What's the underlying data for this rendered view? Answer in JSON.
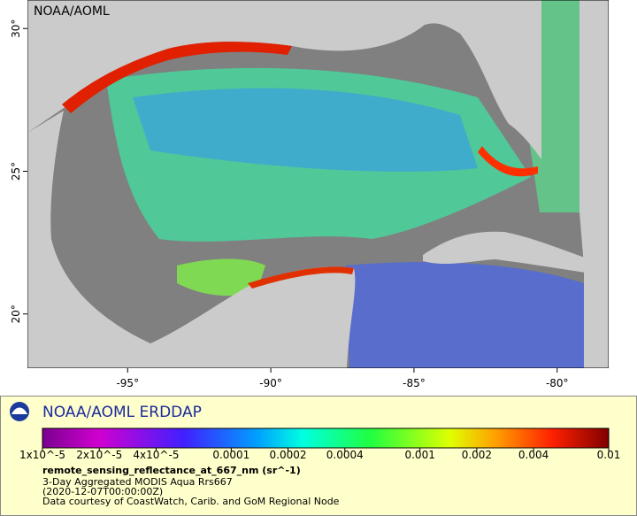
{
  "map": {
    "credit": "NOAA/AOML",
    "xlim": [
      -98.5,
      -78.2
    ],
    "ylim": [
      18.1,
      31
    ],
    "xticks": [
      {
        "value": -95,
        "label": "-95°"
      },
      {
        "value": -90,
        "label": "-90°"
      },
      {
        "value": -85,
        "label": "-85°"
      },
      {
        "value": -80,
        "label": "-80°"
      }
    ],
    "yticks": [
      {
        "value": 20,
        "label": "20°"
      },
      {
        "value": 25,
        "label": "25°"
      },
      {
        "value": 30,
        "label": "30°"
      }
    ]
  },
  "colorbar": {
    "title": "NOAA/AOML ERDDAP",
    "log": true,
    "lim": [
      1e-05,
      0.01
    ],
    "ticks": [
      {
        "value": 1e-05,
        "label": "1x10^-5"
      },
      {
        "value": 2e-05,
        "label": "2x10^-5"
      },
      {
        "value": 4e-05,
        "label": "4x10^-5"
      },
      0.0001,
      0.0002,
      0.0004,
      0.001,
      0.002,
      0.004,
      0.01
    ]
  },
  "footer": {
    "variable": "remote_sensing_reflectance_at_667_nm (sr^-1)",
    "lines": [
      "3-Day Aggregated MODIS Aqua Rrs667",
      "(2020-12-07T00:00:00Z)",
      "Data courtesy of CoastWatch, Carib. and GoM Regional Node"
    ]
  }
}
